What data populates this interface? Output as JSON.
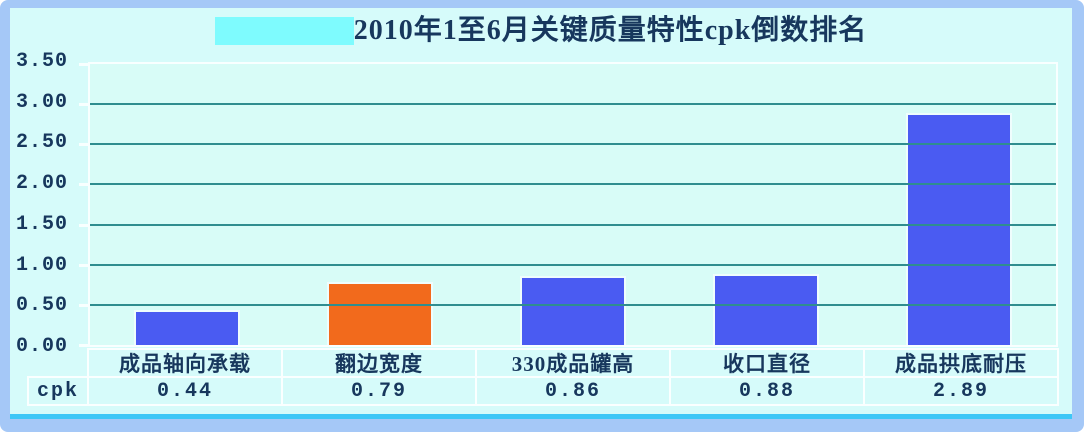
{
  "title": "2010年1至6月关键质量特性cpk倒数排名",
  "chart_data": {
    "type": "bar",
    "title": "2010年1至6月关键质量特性cpk倒数排名",
    "categories": [
      "成品轴向承载",
      "翻边宽度",
      "330成品罐高",
      "收口直径",
      "成品拱底耐压"
    ],
    "values": [
      0.44,
      0.79,
      0.86,
      0.88,
      2.89
    ],
    "series_label": "cpk",
    "ylim": [
      0,
      3.5
    ],
    "ytick_step": 0.5,
    "ytick_labels": [
      "3.50",
      "3.00",
      "2.50",
      "2.00",
      "1.50",
      "1.00",
      "0.50",
      "0.00"
    ],
    "grid": true,
    "legend_position": "none",
    "bar_colors": [
      "#4A5BF2",
      "#F26A1C",
      "#4A5BF2",
      "#4A5BF2",
      "#4A5BF2"
    ]
  },
  "table": {
    "row_label": "cpk",
    "values": [
      "0.44",
      "0.79",
      "0.86",
      "0.88",
      "2.89"
    ]
  },
  "colors": {
    "frame": "#A5C8F7",
    "background": "#D6FBFA",
    "plot_background": "#D8FCF7",
    "gridline": "#2F8D8F",
    "text": "#17375D",
    "title_highlight": "#7EFBFE",
    "bottom_strip": "#3EC7F7",
    "bar_blue": "#4A5BF2",
    "bar_orange": "#F26A1C"
  }
}
